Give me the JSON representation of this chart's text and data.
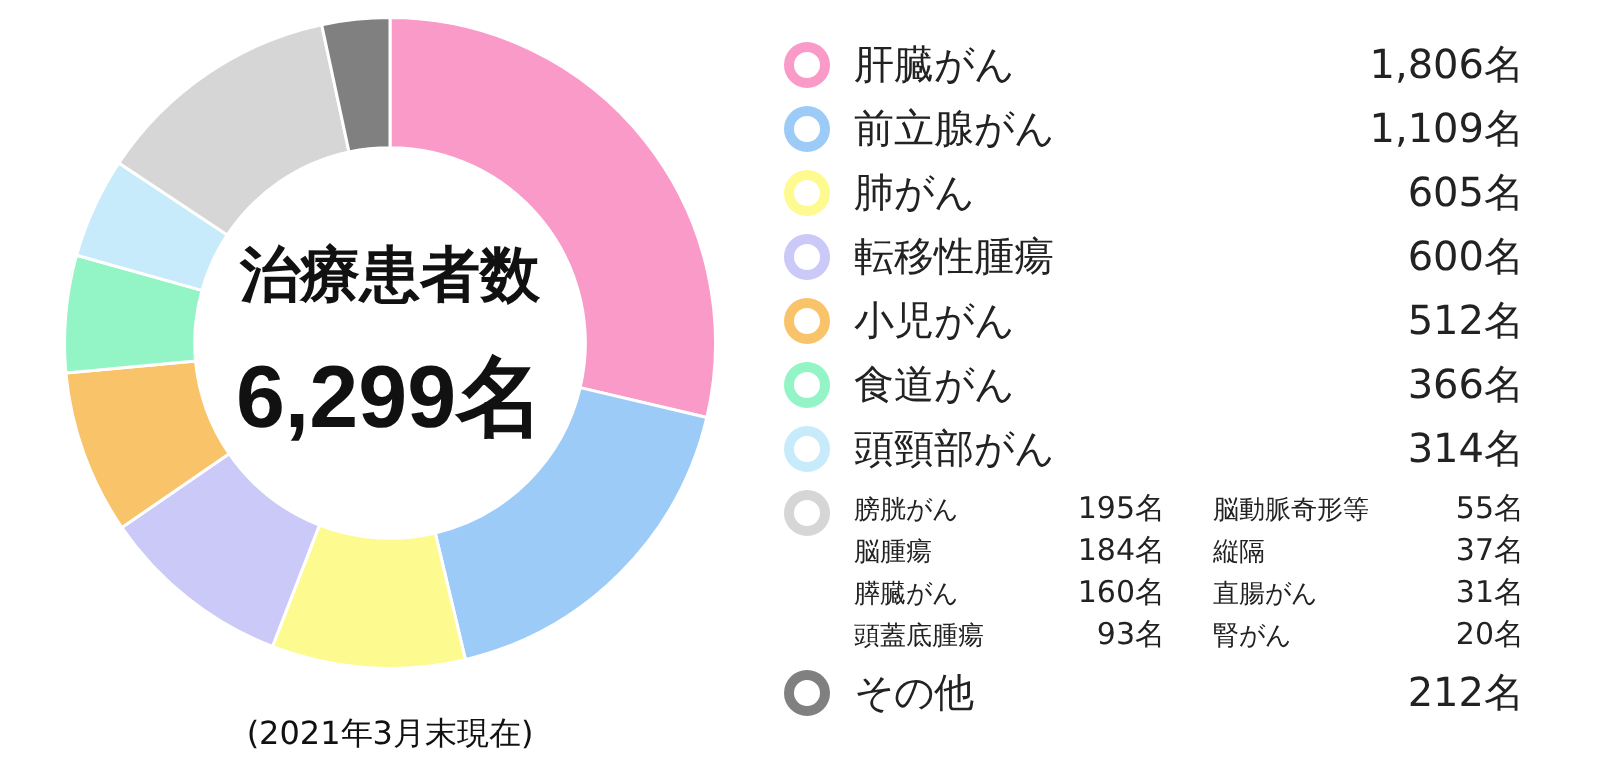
{
  "chart_data": {
    "type": "donut",
    "title": "治療患者数",
    "categories": [
      "肝臓がん",
      "前立腺がん",
      "肺がん",
      "転移性腫瘍",
      "小児がん",
      "食道がん",
      "頭頸部がん",
      null,
      "その他"
    ],
    "values": [
      1806,
      1109,
      605,
      600,
      512,
      366,
      314,
      775,
      212
    ],
    "value_labels": [
      "1,806名",
      "1,109名",
      "605名",
      "600名",
      "512名",
      "366名",
      "314名",
      null,
      "212名"
    ],
    "colors": [
      "#f99ac8",
      "#9dcbf7",
      "#fdfb8f",
      "#cac9f7",
      "#f9c36a",
      "#93f5c6",
      "#c8ebfb",
      "#d6d6d6",
      "#808080"
    ],
    "annotations": [
      "6,299名",
      "(2021年3月末現在)",
      "膀胱がん",
      "195名",
      "脳腫瘍",
      "184名",
      "膵臓がん",
      "160名",
      "頭蓋底腫瘍",
      "93名",
      "脳動脈奇形等",
      "55名",
      "縦隔",
      "37名",
      "直腸がん",
      "31名",
      "腎がん",
      "20名"
    ],
    "legend": "right"
  }
}
